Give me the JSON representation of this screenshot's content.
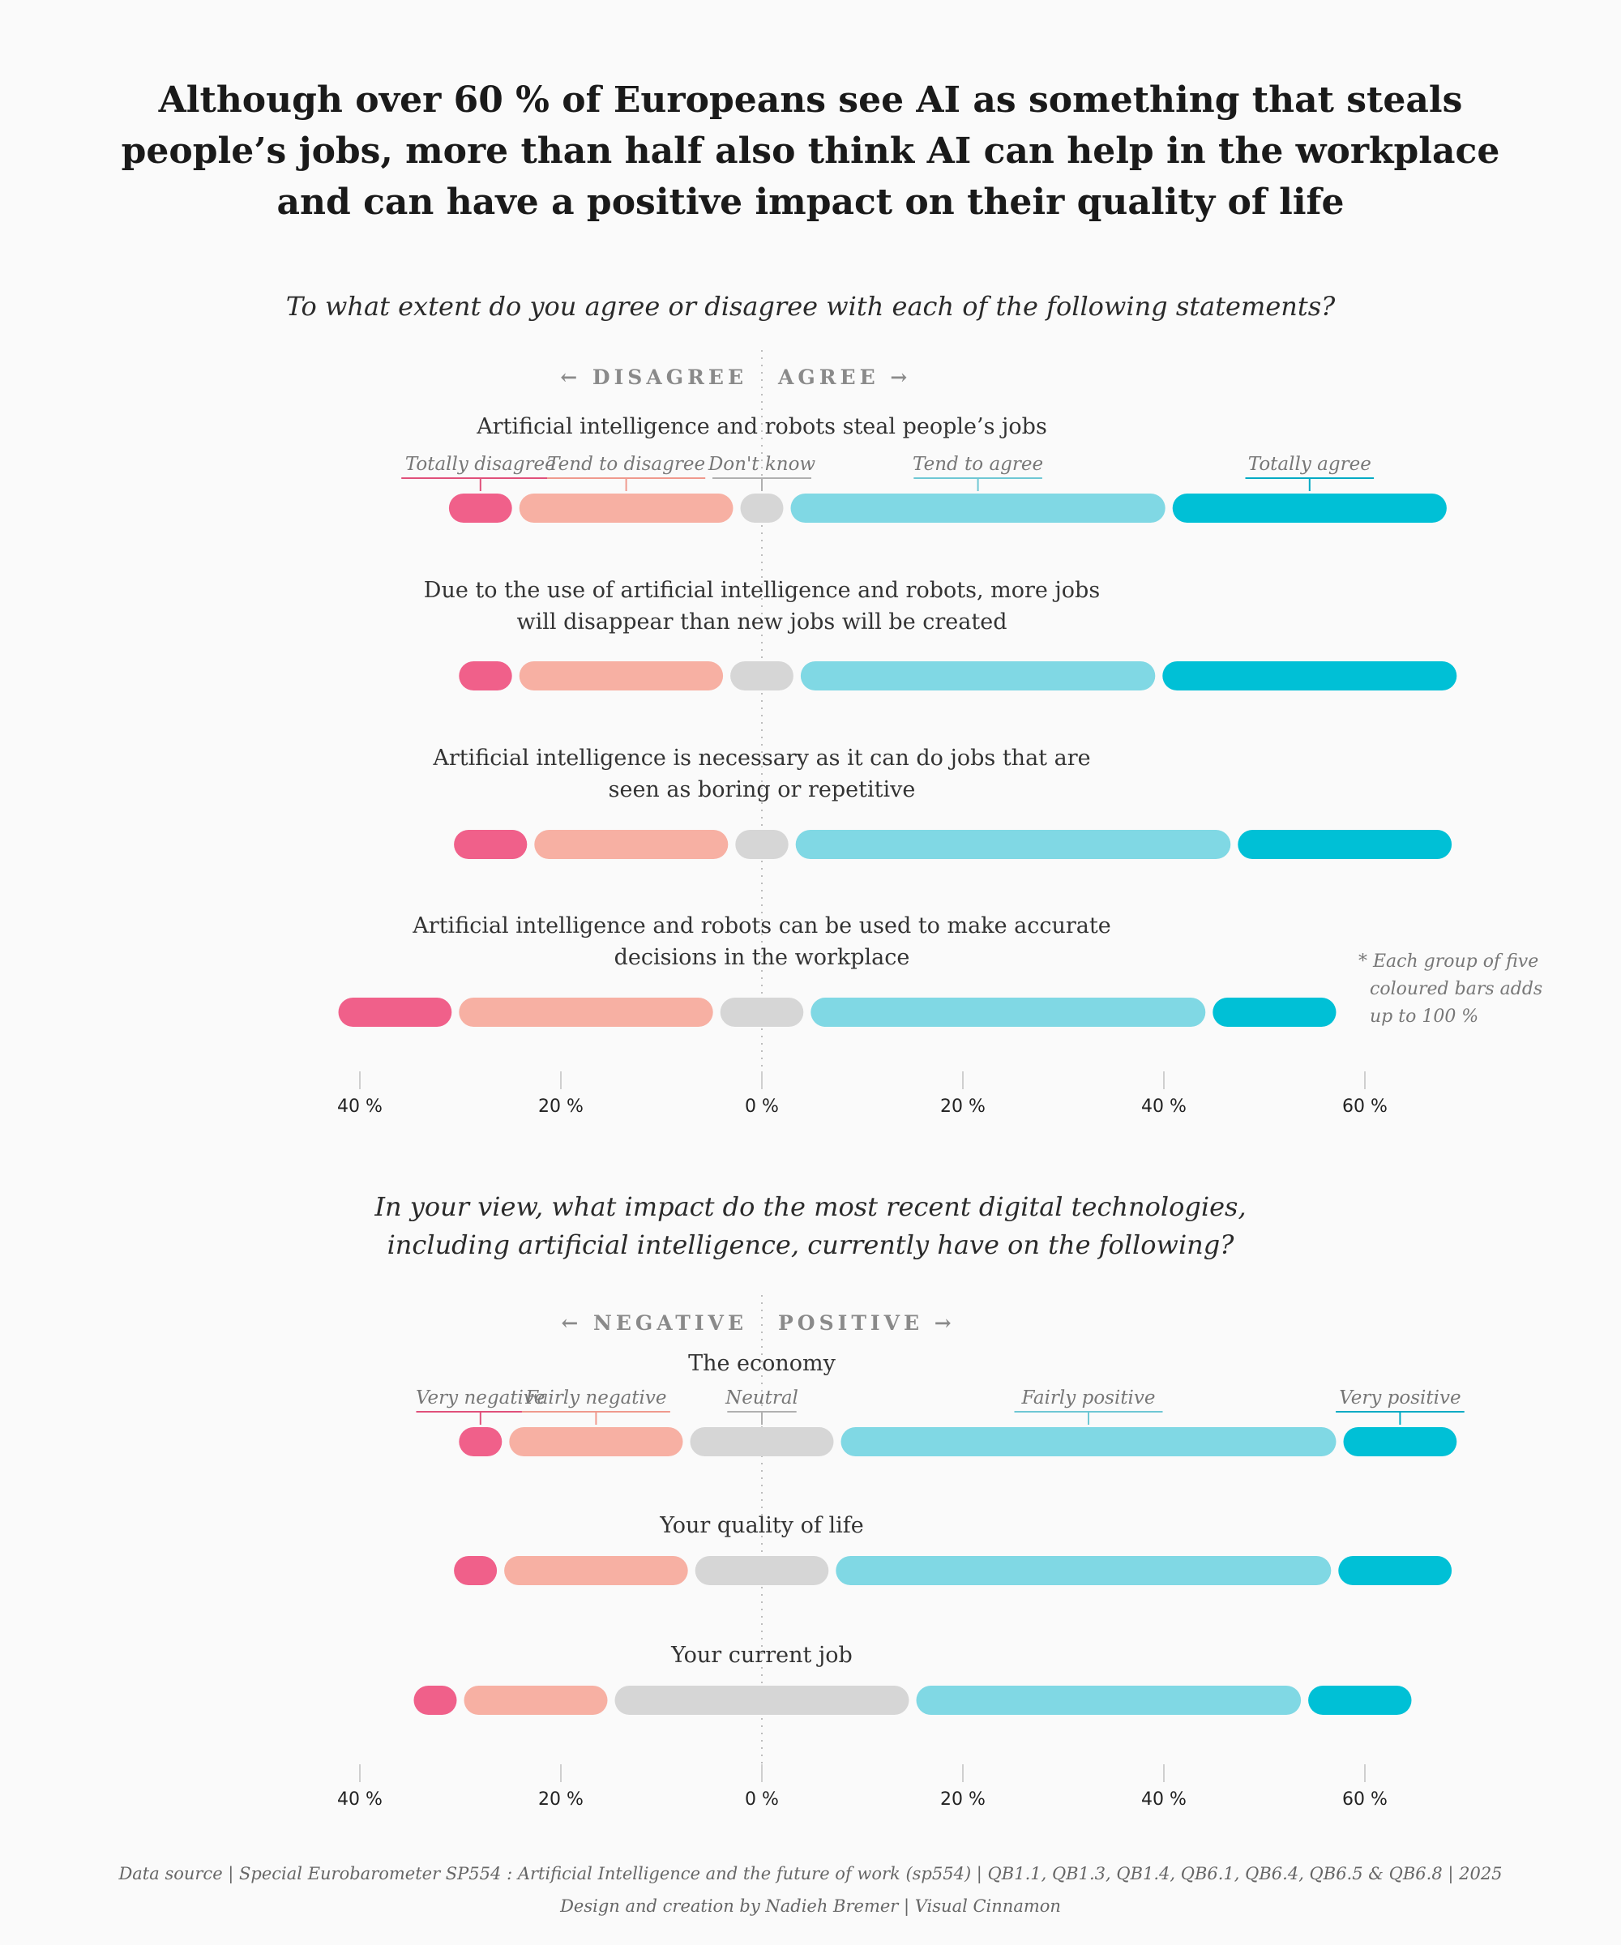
{
  "title_lines": [
    "Although over 60 % of Europeans see AI as something that steals",
    "people’s jobs, more than half also think AI can help in the workplace",
    "and can have a positive impact on their quality of life"
  ],
  "sections": [
    {
      "question_lines": [
        "To what extent do you agree or disagree with each of the following statements?"
      ],
      "direction_left": "← DISAGREE",
      "direction_right": "AGREE →",
      "categories": [
        "Totally disagree",
        "Tend to disagree",
        "Don't know",
        "Tend to agree",
        "Totally agree"
      ]
    },
    {
      "question_lines": [
        "In your view, what impact do the most recent digital technologies,",
        "including artificial intelligence, currently have on the following?"
      ],
      "direction_left": "← NEGATIVE",
      "direction_right": "POSITIVE →",
      "categories": [
        "Very negative",
        "Fairly negative",
        "Neutral",
        "Fairly positive",
        "Very positive"
      ]
    }
  ],
  "footnote_lines": [
    "* Each group of five",
    "coloured bars adds",
    "up to 100 %"
  ],
  "footer": {
    "source": "Data source | Special Eurobarometer SP554 : Artificial Intelligence and the future of work (sp554) | QB1.1, QB1.3, QB1.4, QB6.1, QB6.4, QB6.5 & QB6.8 | 2025",
    "credit": "Design and creation by Nadieh Bremer | Visual Cinnamon"
  },
  "colors": {
    "very_negative": "#f0608a",
    "fairly_negative": "#f7b0a3",
    "neutral": "#d6d6d6",
    "fairly_positive": "#80d8e4",
    "very_positive": "#00c0d6"
  },
  "chart_data": [
    {
      "type": "bar",
      "subtype": "diverging-stacked",
      "question": "To what extent do you agree or disagree with each of the following statements?",
      "series_names": [
        "Totally disagree",
        "Tend to disagree",
        "Don't know",
        "Tend to agree",
        "Totally agree"
      ],
      "rows": [
        {
          "label": [
            "Artificial intelligence and robots steal people’s jobs"
          ],
          "values": [
            7,
            22,
            5,
            38,
            28
          ]
        },
        {
          "label": [
            "Due to the use of artificial intelligence and robots, more jobs",
            "will disappear than new jobs will be created"
          ],
          "values": [
            6,
            21,
            7,
            36,
            30
          ]
        },
        {
          "label": [
            "Artificial intelligence is necessary as it can do jobs that are",
            "seen as boring or repetitive"
          ],
          "values": [
            8,
            20,
            6,
            44,
            22
          ]
        },
        {
          "label": [
            "Artificial intelligence and robots can be used to make accurate",
            "decisions in the workplace"
          ],
          "values": [
            12,
            26,
            9,
            40,
            13
          ]
        }
      ],
      "x_ticks": [
        -40,
        -20,
        0,
        20,
        40,
        60
      ],
      "x_tick_labels": [
        "40 %",
        "20 %",
        "0 %",
        "20 %",
        "40 %",
        "60 %"
      ],
      "xlim": [
        -40,
        60
      ]
    },
    {
      "type": "bar",
      "subtype": "diverging-stacked",
      "question": "In your view, what impact do the most recent digital technologies, including artificial intelligence, currently have on the following?",
      "series_names": [
        "Very negative",
        "Fairly negative",
        "Neutral",
        "Fairly positive",
        "Very positive"
      ],
      "rows": [
        {
          "label": [
            "The economy"
          ],
          "values": [
            5,
            18,
            15,
            50,
            12
          ]
        },
        {
          "label": [
            "Your quality of life"
          ],
          "values": [
            5,
            19,
            14,
            50,
            12
          ]
        },
        {
          "label": [
            "Your current job"
          ],
          "values": [
            5,
            15,
            30,
            39,
            11
          ]
        }
      ],
      "x_ticks": [
        -40,
        -20,
        0,
        20,
        40,
        60
      ],
      "x_tick_labels": [
        "40 %",
        "20 %",
        "0 %",
        "20 %",
        "40 %",
        "60 %"
      ],
      "xlim": [
        -40,
        60
      ]
    }
  ]
}
